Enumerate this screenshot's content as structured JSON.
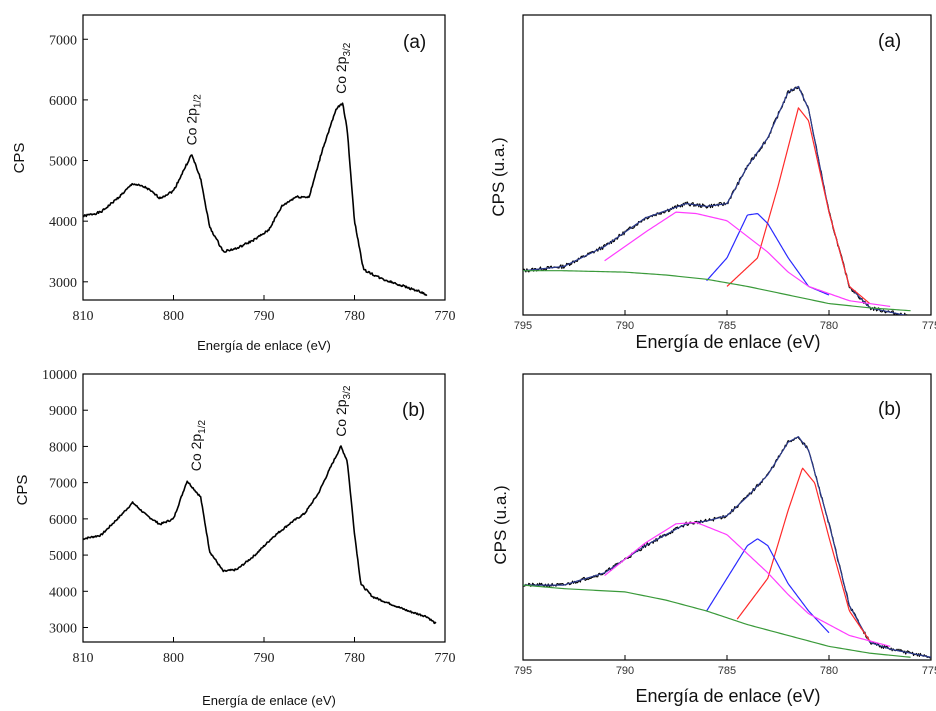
{
  "chart_data": [
    {
      "id": "left-a",
      "type": "line",
      "panel_label": "(a)",
      "xlabel": "Energía de enlace  (eV)",
      "ylabel": "CPS",
      "xlim": [
        810,
        770
      ],
      "ylim": [
        2700,
        7400
      ],
      "x_ticks": [
        810,
        800,
        790,
        780,
        770
      ],
      "y_ticks": [
        3000,
        4000,
        5000,
        6000,
        7000
      ],
      "peak_labels": [
        {
          "text": "Co 2p",
          "sub": "1/2",
          "x": 798.0,
          "y": 5150
        },
        {
          "text": "Co 2p",
          "sub": "3/2",
          "x": 781.5,
          "y": 6000
        }
      ],
      "series": [
        {
          "points": [
            [
              810,
              4080
            ],
            [
              808,
              4150
            ],
            [
              806,
              4400
            ],
            [
              804.5,
              4620
            ],
            [
              803,
              4550
            ],
            [
              801.5,
              4380
            ],
            [
              800,
              4500
            ],
            [
              798,
              5100
            ],
            [
              797,
              4700
            ],
            [
              796,
              3900
            ],
            [
              794.5,
              3500
            ],
            [
              793,
              3550
            ],
            [
              791,
              3700
            ],
            [
              789.5,
              3850
            ],
            [
              788,
              4250
            ],
            [
              786.5,
              4400
            ],
            [
              785,
              4400
            ],
            [
              783.5,
              5200
            ],
            [
              782,
              5850
            ],
            [
              781.3,
              5950
            ],
            [
              780.8,
              5500
            ],
            [
              780,
              4000
            ],
            [
              779,
              3200
            ],
            [
              777,
              3050
            ],
            [
              775,
              2950
            ],
            [
              773,
              2850
            ],
            [
              772,
              2780
            ]
          ]
        }
      ]
    },
    {
      "id": "left-b",
      "type": "line",
      "panel_label": "(b)",
      "xlabel": "Energía de enlace (eV)",
      "ylabel": "CPS",
      "xlim": [
        810,
        770
      ],
      "ylim": [
        2600,
        10000
      ],
      "x_ticks": [
        810,
        800,
        790,
        780,
        770
      ],
      "y_ticks": [
        3000,
        4000,
        5000,
        6000,
        7000,
        8000,
        9000,
        10000
      ],
      "peak_labels": [
        {
          "text": "Co 2p",
          "sub": "1/2",
          "x": 797.5,
          "y": 7150
        },
        {
          "text": "Co 2p",
          "sub": "3/2",
          "x": 781.5,
          "y": 8100
        }
      ],
      "series": [
        {
          "points": [
            [
              810,
              5450
            ],
            [
              808,
              5550
            ],
            [
              806,
              6050
            ],
            [
              804.5,
              6450
            ],
            [
              803,
              6100
            ],
            [
              801.5,
              5850
            ],
            [
              800,
              6000
            ],
            [
              798.5,
              7050
            ],
            [
              797,
              6600
            ],
            [
              796,
              5100
            ],
            [
              794.5,
              4550
            ],
            [
              793,
              4600
            ],
            [
              791,
              5000
            ],
            [
              789,
              5500
            ],
            [
              787,
              5900
            ],
            [
              785.5,
              6150
            ],
            [
              784,
              6700
            ],
            [
              782.5,
              7500
            ],
            [
              781.5,
              8000
            ],
            [
              780.8,
              7600
            ],
            [
              780,
              5600
            ],
            [
              779.3,
              4200
            ],
            [
              778,
              3850
            ],
            [
              776,
              3650
            ],
            [
              774,
              3450
            ],
            [
              772,
              3300
            ],
            [
              771,
              3100
            ]
          ]
        }
      ]
    },
    {
      "id": "right-a",
      "type": "line",
      "panel_label": "(a)",
      "xlabel": "Energía de enlace (eV)",
      "ylabel": "CPS (u.a.)",
      "xlim": [
        795,
        775
      ],
      "ylim": [
        0,
        1.05
      ],
      "x_ticks": [
        795,
        790,
        785,
        780,
        775
      ],
      "series": [
        {
          "color": "#000000",
          "points": [
            [
              795,
              0.155
            ],
            [
              793,
              0.17
            ],
            [
              791,
              0.24
            ],
            [
              789,
              0.34
            ],
            [
              787,
              0.39
            ],
            [
              786,
              0.38
            ],
            [
              785,
              0.39
            ],
            [
              784,
              0.52
            ],
            [
              783,
              0.62
            ],
            [
              782,
              0.78
            ],
            [
              781.5,
              0.8
            ],
            [
              781,
              0.72
            ],
            [
              780,
              0.36
            ],
            [
              779,
              0.1
            ],
            [
              778,
              0.025
            ],
            [
              777,
              0.01
            ],
            [
              775,
              -0.02
            ]
          ]
        },
        {
          "color": "#2b3a8c",
          "points": [
            [
              795,
              0.155
            ],
            [
              793,
              0.17
            ],
            [
              791,
              0.24
            ],
            [
              789,
              0.34
            ],
            [
              787,
              0.39
            ],
            [
              786,
              0.38
            ],
            [
              785,
              0.39
            ],
            [
              784,
              0.52
            ],
            [
              783,
              0.62
            ],
            [
              782,
              0.78
            ],
            [
              781.5,
              0.8
            ],
            [
              781,
              0.72
            ],
            [
              780,
              0.36
            ],
            [
              779,
              0.1
            ],
            [
              778,
              0.025
            ],
            [
              777,
              0.01
            ],
            [
              775,
              -0.02
            ]
          ]
        },
        {
          "color": "#ff2a2a",
          "points": [
            [
              785,
              0.1
            ],
            [
              783.5,
              0.2
            ],
            [
              782.5,
              0.45
            ],
            [
              781.5,
              0.725
            ],
            [
              781,
              0.68
            ],
            [
              780,
              0.36
            ],
            [
              779,
              0.1
            ],
            [
              778,
              0.04
            ]
          ]
        },
        {
          "color": "#2a2aff",
          "points": [
            [
              786,
              0.12
            ],
            [
              785,
              0.2
            ],
            [
              784,
              0.35
            ],
            [
              783.5,
              0.355
            ],
            [
              783,
              0.32
            ],
            [
              782,
              0.2
            ],
            [
              781,
              0.1
            ],
            [
              780,
              0.07
            ]
          ]
        },
        {
          "color": "#ff3cff",
          "points": [
            [
              791,
              0.19
            ],
            [
              789,
              0.29
            ],
            [
              787.5,
              0.36
            ],
            [
              786.5,
              0.355
            ],
            [
              785,
              0.33
            ],
            [
              783,
              0.22
            ],
            [
              782,
              0.15
            ],
            [
              781,
              0.1
            ],
            [
              779,
              0.05
            ],
            [
              777,
              0.03
            ]
          ]
        },
        {
          "color": "#3a9a3a",
          "points": [
            [
              795,
              0.155
            ],
            [
              793,
              0.155
            ],
            [
              790,
              0.15
            ],
            [
              788,
              0.14
            ],
            [
              786,
              0.125
            ],
            [
              784,
              0.1
            ],
            [
              782,
              0.07
            ],
            [
              780,
              0.04
            ],
            [
              778,
              0.025
            ],
            [
              776,
              0.015
            ]
          ]
        }
      ]
    },
    {
      "id": "right-b",
      "type": "line",
      "panel_label": "(b)",
      "xlabel": "Energía de enlace (eV)",
      "ylabel": "CPS (u.a.)",
      "xlim": [
        795,
        775
      ],
      "ylim": [
        0,
        1.05
      ],
      "x_ticks": [
        795,
        790,
        785,
        780,
        775
      ],
      "series": [
        {
          "color": "#000000",
          "points": [
            [
              795,
              0.275
            ],
            [
              793,
              0.275
            ],
            [
              791,
              0.32
            ],
            [
              789,
              0.42
            ],
            [
              787,
              0.5
            ],
            [
              786,
              0.51
            ],
            [
              785,
              0.53
            ],
            [
              784,
              0.6
            ],
            [
              783,
              0.68
            ],
            [
              782,
              0.8
            ],
            [
              781.5,
              0.82
            ],
            [
              781,
              0.77
            ],
            [
              780,
              0.5
            ],
            [
              779,
              0.2
            ],
            [
              778,
              0.065
            ],
            [
              777,
              0.04
            ],
            [
              775,
              0.01
            ]
          ]
        },
        {
          "color": "#2b3a8c",
          "points": [
            [
              795,
              0.275
            ],
            [
              793,
              0.275
            ],
            [
              791,
              0.32
            ],
            [
              789,
              0.42
            ],
            [
              787,
              0.5
            ],
            [
              786,
              0.51
            ],
            [
              785,
              0.53
            ],
            [
              784,
              0.6
            ],
            [
              783,
              0.68
            ],
            [
              782,
              0.8
            ],
            [
              781.5,
              0.82
            ],
            [
              781,
              0.77
            ],
            [
              780,
              0.5
            ],
            [
              779,
              0.2
            ],
            [
              778,
              0.065
            ],
            [
              777,
              0.04
            ],
            [
              775,
              0.01
            ]
          ]
        },
        {
          "color": "#ff2a2a",
          "points": [
            [
              784.5,
              0.15
            ],
            [
              783,
              0.3
            ],
            [
              782,
              0.55
            ],
            [
              781.3,
              0.705
            ],
            [
              780.7,
              0.65
            ],
            [
              780,
              0.45
            ],
            [
              779,
              0.18
            ],
            [
              778,
              0.07
            ]
          ]
        },
        {
          "color": "#2a2aff",
          "points": [
            [
              786,
              0.18
            ],
            [
              785,
              0.3
            ],
            [
              784,
              0.42
            ],
            [
              783.5,
              0.445
            ],
            [
              783,
              0.42
            ],
            [
              782,
              0.28
            ],
            [
              781,
              0.18
            ],
            [
              780,
              0.1
            ]
          ]
        },
        {
          "color": "#ff3cff",
          "points": [
            [
              791,
              0.31
            ],
            [
              789,
              0.43
            ],
            [
              787.5,
              0.5
            ],
            [
              786.5,
              0.505
            ],
            [
              785,
              0.46
            ],
            [
              783,
              0.32
            ],
            [
              782,
              0.24
            ],
            [
              781,
              0.17
            ],
            [
              779,
              0.09
            ],
            [
              777,
              0.05
            ]
          ]
        },
        {
          "color": "#3a9a3a",
          "points": [
            [
              795,
              0.275
            ],
            [
              793,
              0.262
            ],
            [
              790,
              0.25
            ],
            [
              788,
              0.22
            ],
            [
              786,
              0.18
            ],
            [
              784,
              0.13
            ],
            [
              782,
              0.09
            ],
            [
              780,
              0.05
            ],
            [
              778,
              0.025
            ],
            [
              776,
              0.01
            ]
          ]
        }
      ]
    }
  ]
}
